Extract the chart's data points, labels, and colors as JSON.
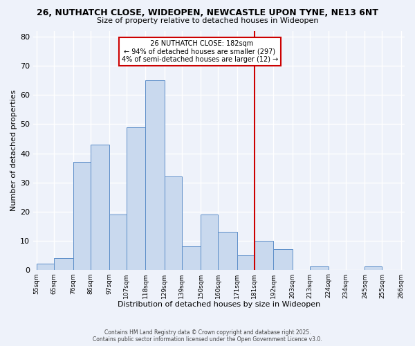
{
  "title_line1": "26, NUTHATCH CLOSE, WIDEOPEN, NEWCASTLE UPON TYNE, NE13 6NT",
  "title_line2": "Size of property relative to detached houses in Wideopen",
  "xlabel": "Distribution of detached houses by size in Wideopen",
  "ylabel": "Number of detached properties",
  "bin_edges": [
    55,
    65,
    76,
    86,
    97,
    107,
    118,
    129,
    139,
    150,
    160,
    171,
    181,
    192,
    203,
    213,
    224,
    234,
    245,
    255,
    266
  ],
  "bin_labels": [
    "55sqm",
    "65sqm",
    "76sqm",
    "86sqm",
    "97sqm",
    "107sqm",
    "118sqm",
    "129sqm",
    "139sqm",
    "150sqm",
    "160sqm",
    "171sqm",
    "181sqm",
    "192sqm",
    "203sqm",
    "213sqm",
    "224sqm",
    "234sqm",
    "245sqm",
    "255sqm",
    "266sqm"
  ],
  "counts": [
    2,
    4,
    37,
    43,
    19,
    49,
    65,
    32,
    8,
    19,
    13,
    5,
    10,
    7,
    0,
    1,
    0,
    0,
    1,
    0
  ],
  "bar_facecolor": "#c9d9ee",
  "bar_edgecolor": "#5b8dc8",
  "vline_x": 181,
  "vline_color": "#cc0000",
  "annotation_title": "26 NUTHATCH CLOSE: 182sqm",
  "annotation_line1": "← 94% of detached houses are smaller (297)",
  "annotation_line2": "4% of semi-detached houses are larger (12) →",
  "annotation_box_edgecolor": "#cc0000",
  "ylim": [
    0,
    82
  ],
  "yticks": [
    0,
    10,
    20,
    30,
    40,
    50,
    60,
    70,
    80
  ],
  "background_color": "#eef2fa",
  "grid_color": "#ffffff",
  "footer_line1": "Contains HM Land Registry data © Crown copyright and database right 2025.",
  "footer_line2": "Contains public sector information licensed under the Open Government Licence v3.0."
}
